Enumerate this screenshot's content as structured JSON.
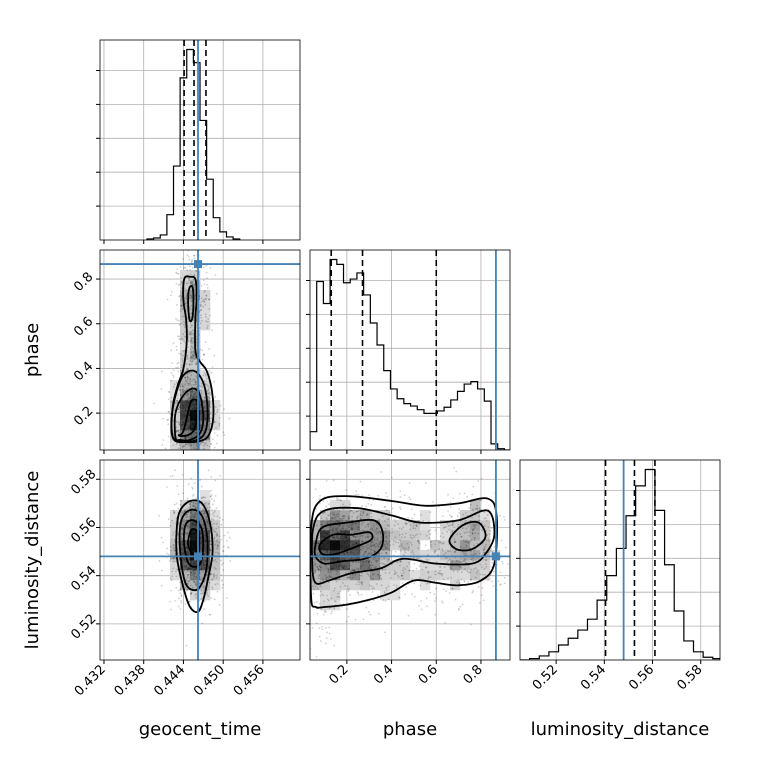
{
  "chart_data": {
    "type": "corner",
    "parameters": [
      "geocent_time",
      "phase",
      "luminosity_distance"
    ],
    "axis_labels": {
      "geocent_time": "geocent_time",
      "phase": "phase",
      "luminosity_distance": "luminosity_distance"
    },
    "truths": {
      "geocent_time": 0.4462,
      "phase": 0.867,
      "luminosity_distance": 0.548
    },
    "ranges": {
      "geocent_time": [
        0.4314,
        0.4616
      ],
      "phase": [
        0.035,
        0.93
      ],
      "luminosity_distance": [
        0.505,
        0.588
      ]
    },
    "ticks": {
      "geocent_time": [
        0.432,
        0.438,
        0.444,
        0.45,
        0.456
      ],
      "phase": [
        0.2,
        0.4,
        0.6,
        0.8
      ],
      "luminosity_distance": [
        0.52,
        0.54,
        0.56,
        0.58
      ]
    },
    "tick_labels": {
      "geocent_time": [
        "0.432",
        "0.438",
        "0.444",
        "0.450",
        "0.456"
      ],
      "phase_bottom": [
        "0.2",
        "0.4",
        "0.6",
        "0.8"
      ],
      "phase_left": [
        "0.2",
        "0.4",
        "0.6",
        "0.8"
      ],
      "luminosity_distance_bottom": [
        "0.52",
        "0.54",
        "0.56",
        "0.58"
      ],
      "luminosity_distance_left": [
        "0.52",
        "0.54",
        "0.56",
        "0.58"
      ]
    },
    "quantiles": {
      "geocent_time": [
        0.4441,
        0.4456,
        0.4474
      ],
      "phase": [
        0.13,
        0.27,
        0.6
      ],
      "luminosity_distance": [
        0.5405,
        0.5525,
        0.561
      ]
    },
    "histograms": {
      "geocent_time": {
        "edges": [
          0.4385,
          0.4395,
          0.4405,
          0.4415,
          0.4425,
          0.4435,
          0.4445,
          0.4455,
          0.4465,
          0.4475,
          0.4485,
          0.4495,
          0.4505,
          0.4515,
          0.4525
        ],
        "counts": [
          1,
          2,
          5,
          25,
          73,
          160,
          188,
          175,
          118,
          60,
          22,
          8,
          3,
          1
        ]
      },
      "phase": {
        "edges": [
          0.035,
          0.065,
          0.095,
          0.125,
          0.155,
          0.185,
          0.215,
          0.245,
          0.275,
          0.305,
          0.335,
          0.365,
          0.395,
          0.425,
          0.455,
          0.485,
          0.515,
          0.545,
          0.575,
          0.605,
          0.635,
          0.665,
          0.695,
          0.725,
          0.755,
          0.785,
          0.815,
          0.845,
          0.875,
          0.905,
          0.935
        ],
        "counts": [
          15,
          138,
          120,
          156,
          152,
          137,
          140,
          145,
          127,
          104,
          86,
          65,
          50,
          42,
          38,
          36,
          33,
          30,
          30,
          32,
          35,
          41,
          48,
          54,
          56,
          50,
          40,
          5,
          1,
          0
        ]
      },
      "luminosity_distance": {
        "edges": [
          0.505,
          0.509,
          0.513,
          0.517,
          0.521,
          0.525,
          0.529,
          0.533,
          0.537,
          0.541,
          0.545,
          0.549,
          0.553,
          0.557,
          0.561,
          0.565,
          0.569,
          0.573,
          0.577,
          0.581,
          0.585,
          0.588
        ],
        "counts": [
          0,
          1,
          3,
          6,
          11,
          16,
          22,
          30,
          44,
          62,
          82,
          106,
          128,
          140,
          110,
          70,
          36,
          14,
          6,
          2,
          1
        ]
      }
    },
    "density_clouds": [
      {
        "x": "geocent_time",
        "y": "phase",
        "blobs": [
          [
            0.4455,
            0.18,
            0.0017,
            0.09,
            1500
          ],
          [
            0.4452,
            0.48,
            0.0013,
            0.22,
            800
          ],
          [
            0.4455,
            0.72,
            0.0013,
            0.08,
            300
          ]
        ]
      },
      {
        "x": "geocent_time",
        "y": "luminosity_distance",
        "blobs": [
          [
            0.4458,
            0.552,
            0.0018,
            0.011,
            2200
          ]
        ]
      },
      {
        "x": "phase",
        "y": "luminosity_distance",
        "blobs": [
          [
            0.17,
            0.553,
            0.09,
            0.009,
            1300
          ],
          [
            0.33,
            0.551,
            0.08,
            0.011,
            600
          ],
          [
            0.55,
            0.55,
            0.1,
            0.012,
            450
          ],
          [
            0.76,
            0.552,
            0.07,
            0.011,
            600
          ],
          [
            0.1,
            0.542,
            0.04,
            0.014,
            300
          ]
        ]
      }
    ],
    "contours": [
      {
        "x": "geocent_time",
        "y": "phase",
        "level": 1,
        "path": [
          [
            0.4433,
            0.1
          ],
          [
            0.444,
            0.12
          ],
          [
            0.445,
            0.24
          ],
          [
            0.4455,
            0.26
          ],
          [
            0.4461,
            0.25
          ],
          [
            0.446,
            0.17
          ],
          [
            0.4455,
            0.12
          ],
          [
            0.4445,
            0.1
          ]
        ]
      },
      {
        "x": "geocent_time",
        "y": "phase",
        "level": 2,
        "path": [
          [
            0.4428,
            0.09
          ],
          [
            0.4428,
            0.2
          ],
          [
            0.444,
            0.28
          ],
          [
            0.4455,
            0.31
          ],
          [
            0.4465,
            0.28
          ],
          [
            0.447,
            0.18
          ],
          [
            0.4465,
            0.11
          ],
          [
            0.445,
            0.08
          ],
          [
            0.4435,
            0.08
          ]
        ]
      },
      {
        "x": "geocent_time",
        "y": "phase",
        "level": 3,
        "path": [
          [
            0.4423,
            0.1
          ],
          [
            0.4423,
            0.2
          ],
          [
            0.443,
            0.3
          ],
          [
            0.444,
            0.37
          ],
          [
            0.4455,
            0.39
          ],
          [
            0.4468,
            0.35
          ],
          [
            0.4475,
            0.27
          ],
          [
            0.4476,
            0.16
          ],
          [
            0.447,
            0.1
          ],
          [
            0.4455,
            0.075
          ],
          [
            0.4435,
            0.075
          ]
        ]
      },
      {
        "x": "geocent_time",
        "y": "phase",
        "level": 4,
        "path": [
          [
            0.4426,
            0.08
          ],
          [
            0.4422,
            0.15
          ],
          [
            0.4425,
            0.25
          ],
          [
            0.4432,
            0.33
          ],
          [
            0.444,
            0.4
          ],
          [
            0.4445,
            0.52
          ],
          [
            0.4444,
            0.62
          ],
          [
            0.444,
            0.7
          ],
          [
            0.444,
            0.78
          ],
          [
            0.4443,
            0.81
          ],
          [
            0.445,
            0.81
          ],
          [
            0.4458,
            0.8
          ],
          [
            0.446,
            0.72
          ],
          [
            0.4458,
            0.62
          ],
          [
            0.4458,
            0.48
          ],
          [
            0.4465,
            0.43
          ],
          [
            0.4475,
            0.39
          ],
          [
            0.4483,
            0.3
          ],
          [
            0.4485,
            0.18
          ],
          [
            0.4478,
            0.1
          ],
          [
            0.4465,
            0.075
          ],
          [
            0.4445,
            0.07
          ]
        ]
      },
      {
        "x": "geocent_time",
        "y": "phase",
        "level": 4,
        "path": [
          [
            0.4449,
            0.62
          ],
          [
            0.4447,
            0.7
          ],
          [
            0.4449,
            0.76
          ],
          [
            0.4454,
            0.76
          ],
          [
            0.4455,
            0.68
          ],
          [
            0.4453,
            0.62
          ]
        ]
      },
      {
        "x": "geocent_time",
        "y": "luminosity_distance",
        "level": 1,
        "path": [
          [
            0.4447,
            0.553
          ],
          [
            0.4452,
            0.559
          ],
          [
            0.4462,
            0.558
          ],
          [
            0.4463,
            0.552
          ],
          [
            0.4455,
            0.549
          ]
        ]
      },
      {
        "x": "geocent_time",
        "y": "luminosity_distance",
        "level": 2,
        "path": [
          [
            0.4441,
            0.553
          ],
          [
            0.4443,
            0.561
          ],
          [
            0.4455,
            0.563
          ],
          [
            0.4468,
            0.559
          ],
          [
            0.4469,
            0.549
          ],
          [
            0.4462,
            0.544
          ],
          [
            0.4448,
            0.545
          ]
        ]
      },
      {
        "x": "geocent_time",
        "y": "luminosity_distance",
        "level": 3,
        "path": [
          [
            0.4435,
            0.55
          ],
          [
            0.4436,
            0.562
          ],
          [
            0.4448,
            0.567
          ],
          [
            0.4465,
            0.566
          ],
          [
            0.4475,
            0.558
          ],
          [
            0.4476,
            0.546
          ],
          [
            0.447,
            0.538
          ],
          [
            0.4458,
            0.534
          ],
          [
            0.4443,
            0.537
          ]
        ]
      },
      {
        "x": "geocent_time",
        "y": "luminosity_distance",
        "level": 4,
        "path": [
          [
            0.443,
            0.548
          ],
          [
            0.443,
            0.56
          ],
          [
            0.4435,
            0.567
          ],
          [
            0.445,
            0.571
          ],
          [
            0.4468,
            0.57
          ],
          [
            0.448,
            0.562
          ],
          [
            0.4484,
            0.55
          ],
          [
            0.4478,
            0.54
          ],
          [
            0.447,
            0.53
          ],
          [
            0.4462,
            0.525
          ],
          [
            0.445,
            0.527
          ],
          [
            0.444,
            0.535
          ]
        ]
      },
      {
        "x": "phase",
        "y": "luminosity_distance",
        "level": 1,
        "path": [
          [
            0.08,
            0.553
          ],
          [
            0.14,
            0.557
          ],
          [
            0.22,
            0.557
          ],
          [
            0.3,
            0.558
          ],
          [
            0.31,
            0.555
          ],
          [
            0.24,
            0.552
          ],
          [
            0.15,
            0.549
          ],
          [
            0.09,
            0.549
          ]
        ]
      },
      {
        "x": "phase",
        "y": "luminosity_distance",
        "level": 2,
        "path": [
          [
            0.06,
            0.553
          ],
          [
            0.09,
            0.56
          ],
          [
            0.2,
            0.562
          ],
          [
            0.32,
            0.563
          ],
          [
            0.36,
            0.558
          ],
          [
            0.35,
            0.551
          ],
          [
            0.28,
            0.547
          ],
          [
            0.18,
            0.546
          ],
          [
            0.1,
            0.545
          ],
          [
            0.06,
            0.548
          ]
        ]
      },
      {
        "x": "phase",
        "y": "luminosity_distance",
        "level": 3,
        "path": [
          [
            0.045,
            0.545
          ],
          [
            0.05,
            0.56
          ],
          [
            0.1,
            0.567
          ],
          [
            0.25,
            0.568
          ],
          [
            0.4,
            0.565
          ],
          [
            0.53,
            0.562
          ],
          [
            0.7,
            0.563
          ],
          [
            0.83,
            0.567
          ],
          [
            0.86,
            0.557
          ],
          [
            0.82,
            0.549
          ],
          [
            0.76,
            0.545
          ],
          [
            0.6,
            0.545
          ],
          [
            0.45,
            0.547
          ],
          [
            0.35,
            0.543
          ],
          [
            0.22,
            0.541
          ],
          [
            0.12,
            0.538
          ],
          [
            0.06,
            0.537
          ]
        ]
      },
      {
        "x": "phase",
        "y": "luminosity_distance",
        "level": 3,
        "path": [
          [
            0.66,
            0.555
          ],
          [
            0.72,
            0.561
          ],
          [
            0.79,
            0.562
          ],
          [
            0.82,
            0.556
          ],
          [
            0.76,
            0.551
          ],
          [
            0.69,
            0.551
          ]
        ]
      },
      {
        "x": "phase",
        "y": "luminosity_distance",
        "level": 4,
        "path": [
          [
            0.04,
            0.531
          ],
          [
            0.04,
            0.56
          ],
          [
            0.08,
            0.571
          ],
          [
            0.2,
            0.573
          ],
          [
            0.4,
            0.571
          ],
          [
            0.55,
            0.569
          ],
          [
            0.7,
            0.57
          ],
          [
            0.83,
            0.572
          ],
          [
            0.87,
            0.565
          ],
          [
            0.86,
            0.545
          ],
          [
            0.8,
            0.538
          ],
          [
            0.7,
            0.536
          ],
          [
            0.6,
            0.537
          ],
          [
            0.5,
            0.538
          ],
          [
            0.4,
            0.533
          ],
          [
            0.3,
            0.53
          ],
          [
            0.2,
            0.528
          ],
          [
            0.1,
            0.527
          ],
          [
            0.06,
            0.527
          ]
        ]
      }
    ]
  }
}
